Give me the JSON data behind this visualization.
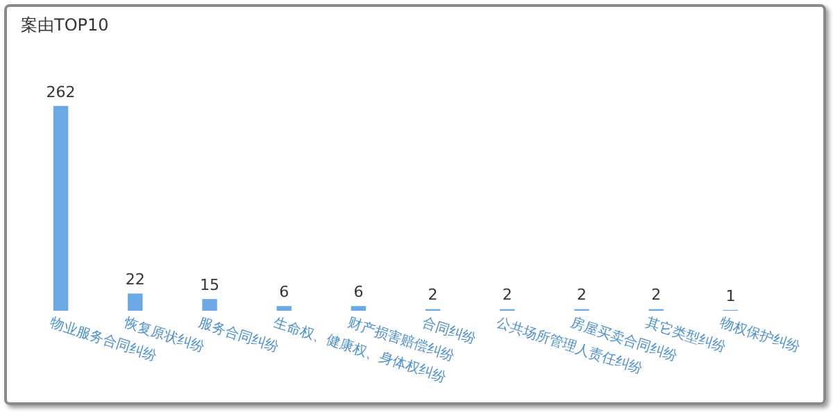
{
  "chart_data": {
    "type": "bar",
    "title": "案由TOP10",
    "categories": [
      "物业服务合同纠纷",
      "恢复原状纠纷",
      "服务合同纠纷",
      "生命权、健康权、身体权纠纷",
      "财产损害赔偿纠纷",
      "合同纠纷",
      "公共场所管理人责任纠纷",
      "房屋买卖合同纠纷",
      "其它类型纠纷",
      "物权保护纠纷"
    ],
    "values": [
      262,
      22,
      15,
      6,
      6,
      2,
      2,
      2,
      2,
      1
    ],
    "color": "#6aa9e6",
    "data_labels": true,
    "grid": false,
    "legend": false
  }
}
